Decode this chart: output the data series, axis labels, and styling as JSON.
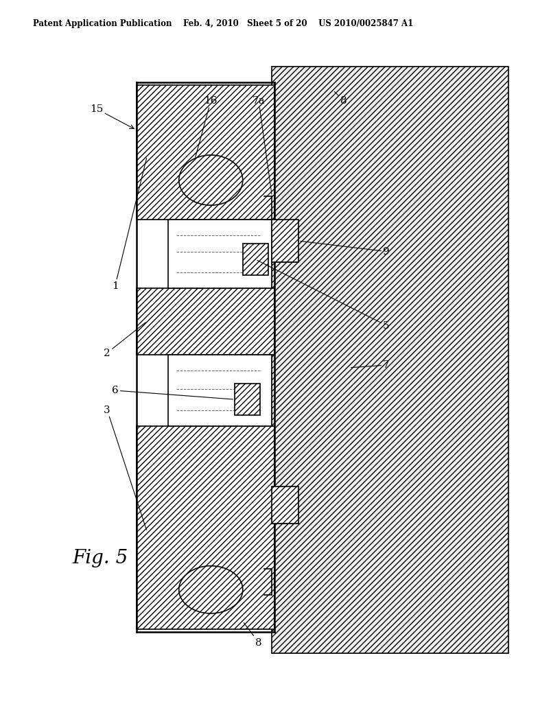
{
  "title": "Patent Application Publication    Feb. 4, 2010   Sheet 5 of 20    US 2010/0025847 A1",
  "fig_label": "Fig. 5",
  "background": "#ffffff"
}
